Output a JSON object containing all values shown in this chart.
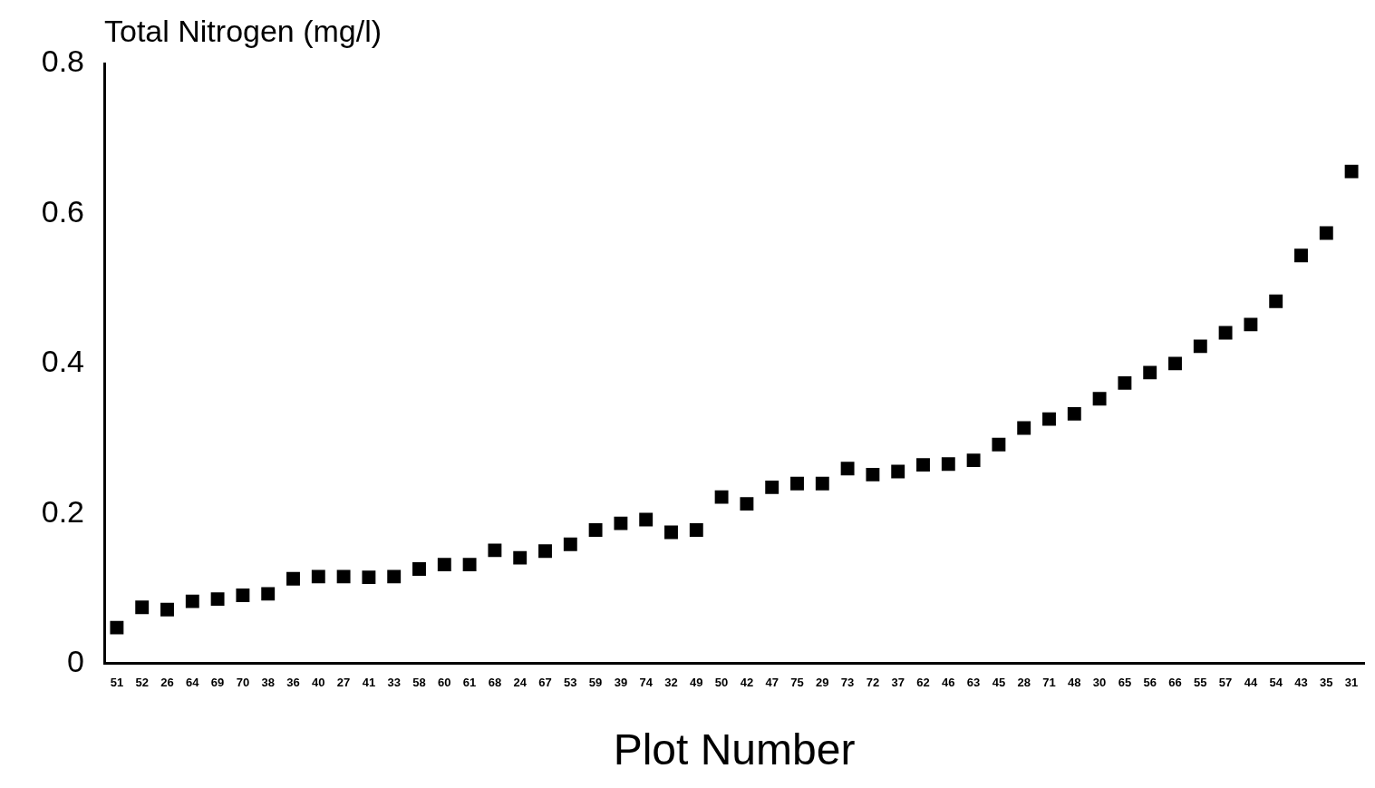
{
  "chart_data": {
    "type": "scatter",
    "ylabel": "Total Nitrogen (mg/l)",
    "xlabel": "Plot Number",
    "categories": [
      "51",
      "52",
      "26",
      "64",
      "69",
      "70",
      "38",
      "36",
      "40",
      "27",
      "41",
      "33",
      "58",
      "60",
      "61",
      "68",
      "24",
      "67",
      "53",
      "59",
      "39",
      "74",
      "32",
      "49",
      "50",
      "42",
      "47",
      "75",
      "29",
      "73",
      "72",
      "37",
      "62",
      "46",
      "63",
      "45",
      "28",
      "71",
      "48",
      "30",
      "65",
      "56",
      "66",
      "55",
      "57",
      "44",
      "54",
      "43",
      "35",
      "31"
    ],
    "values": [
      0.048,
      0.075,
      0.072,
      0.083,
      0.086,
      0.091,
      0.093,
      0.113,
      0.116,
      0.116,
      0.115,
      0.116,
      0.126,
      0.132,
      0.132,
      0.151,
      0.141,
      0.15,
      0.159,
      0.178,
      0.187,
      0.192,
      0.175,
      0.178,
      0.222,
      0.213,
      0.235,
      0.24,
      0.24,
      0.26,
      0.252,
      0.256,
      0.265,
      0.266,
      0.271,
      0.292,
      0.314,
      0.326,
      0.333,
      0.353,
      0.374,
      0.388,
      0.4,
      0.423,
      0.441,
      0.452,
      0.483,
      0.544,
      0.574,
      0.656
    ],
    "color": "#000000",
    "marker": "square",
    "ylim": [
      0,
      0.8
    ],
    "yticks": [
      0,
      0.2,
      0.4,
      0.6,
      0.8
    ],
    "grid": false,
    "legend": false
  }
}
